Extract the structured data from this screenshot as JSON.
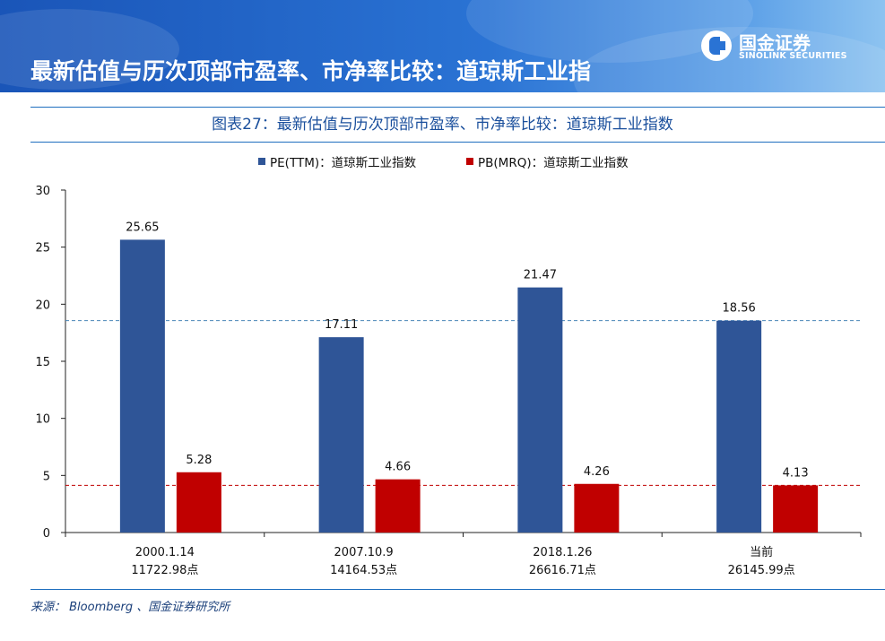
{
  "header": {
    "title": "最新估值与历次顶部市盈率、市净率比较：道琼斯工业指",
    "logo_cn": "国金证券",
    "logo_en": "SINOLINK SECURITIES"
  },
  "chart_data": {
    "type": "bar",
    "title": "图表27：最新估值与历次顶部市盈率、市净率比较：道琼斯工业指数",
    "categories": [
      "2000.1.14",
      "2007.10.9",
      "2018.1.26",
      "当前"
    ],
    "category_sublabels": [
      "11722.98点",
      "14164.53点",
      "26616.71点",
      "26145.99点"
    ],
    "series": [
      {
        "name": "PE(TTM)：道琼斯工业指数",
        "color": "#2f5597",
        "values": [
          25.65,
          17.11,
          21.47,
          18.56
        ]
      },
      {
        "name": "PB(MRQ)：道琼斯工业指数",
        "color": "#c00000",
        "values": [
          5.28,
          4.66,
          4.26,
          4.13
        ]
      }
    ],
    "data_labels": {
      "PE": [
        "25.65",
        "17.11",
        "21.47",
        "18.56"
      ],
      "PB": [
        "5.28",
        "4.66",
        "4.26",
        "4.13"
      ]
    },
    "reference_lines": [
      {
        "value": 18.56,
        "color": "#4a86b8",
        "style": "dashed"
      },
      {
        "value": 4.13,
        "color": "#c00000",
        "style": "dashed"
      }
    ],
    "ylim": [
      0,
      30
    ],
    "yticks": [
      "0",
      "5",
      "10",
      "15",
      "20",
      "25",
      "30"
    ],
    "xlabel": "",
    "ylabel": "",
    "legend_position": "top-center"
  },
  "footer": {
    "source": "来源： Bloomberg 、国金证券研究所"
  }
}
